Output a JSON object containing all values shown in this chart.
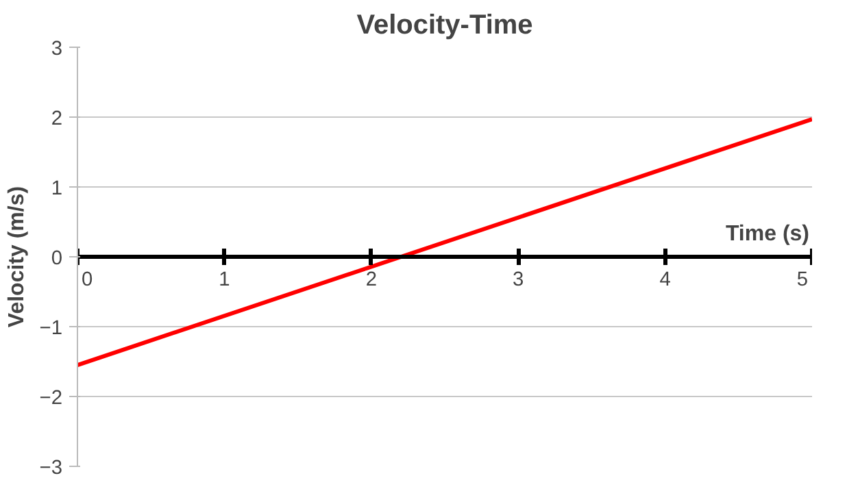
{
  "chart_data": {
    "type": "line",
    "title": "Velocity-Time",
    "xlabel": "Time (s)",
    "ylabel": "Velocity (m/s)",
    "x": [
      0,
      5
    ],
    "series": [
      {
        "color": "#ff0000",
        "values": [
          -1.55,
          1.97
        ]
      }
    ],
    "xlim": [
      0,
      5
    ],
    "ylim": [
      -3,
      3
    ],
    "xticks": [
      0,
      1,
      2,
      3,
      4,
      5
    ],
    "yticks": [
      -3,
      -2,
      -1,
      0,
      1,
      2,
      3
    ],
    "grid": "y",
    "marker": "none",
    "line_style": "solid"
  }
}
